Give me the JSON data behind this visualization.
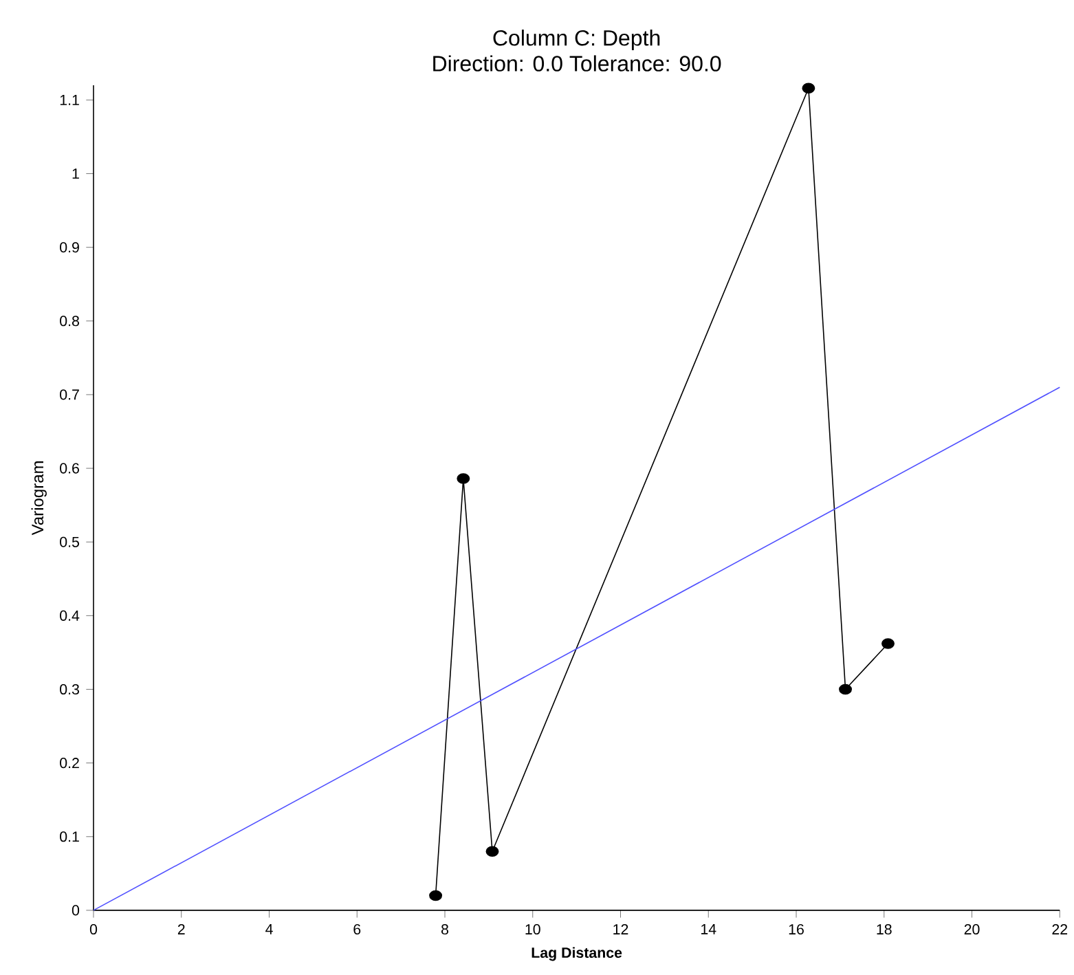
{
  "chart_data": {
    "type": "line",
    "title": "Column C:  Depth",
    "subtitle": "Direction: 0.0   Tolerance: 90.0",
    "xlabel": "Lag Distance",
    "ylabel": "Variogram",
    "series": [
      {
        "color": "#000000",
        "marker": "circle",
        "x": [
          7.79,
          8.42,
          9.08,
          16.28,
          17.12,
          18.09
        ],
        "values": [
          0.02,
          0.586,
          0.08,
          1.116,
          0.3,
          0.362
        ]
      },
      {
        "color": "#5050ff",
        "marker": "none",
        "x": [
          0,
          22
        ],
        "values": [
          0,
          0.71
        ]
      }
    ],
    "xlim": [
      0,
      22
    ],
    "ylim": [
      0,
      1.12
    ],
    "xticks": [
      0,
      2,
      4,
      6,
      8,
      10,
      12,
      14,
      16,
      18,
      20,
      22
    ],
    "yticks": [
      0,
      0.1,
      0.2,
      0.3,
      0.4,
      0.5,
      0.6,
      0.7,
      0.8,
      0.9,
      1,
      1.1
    ],
    "grid": false
  }
}
